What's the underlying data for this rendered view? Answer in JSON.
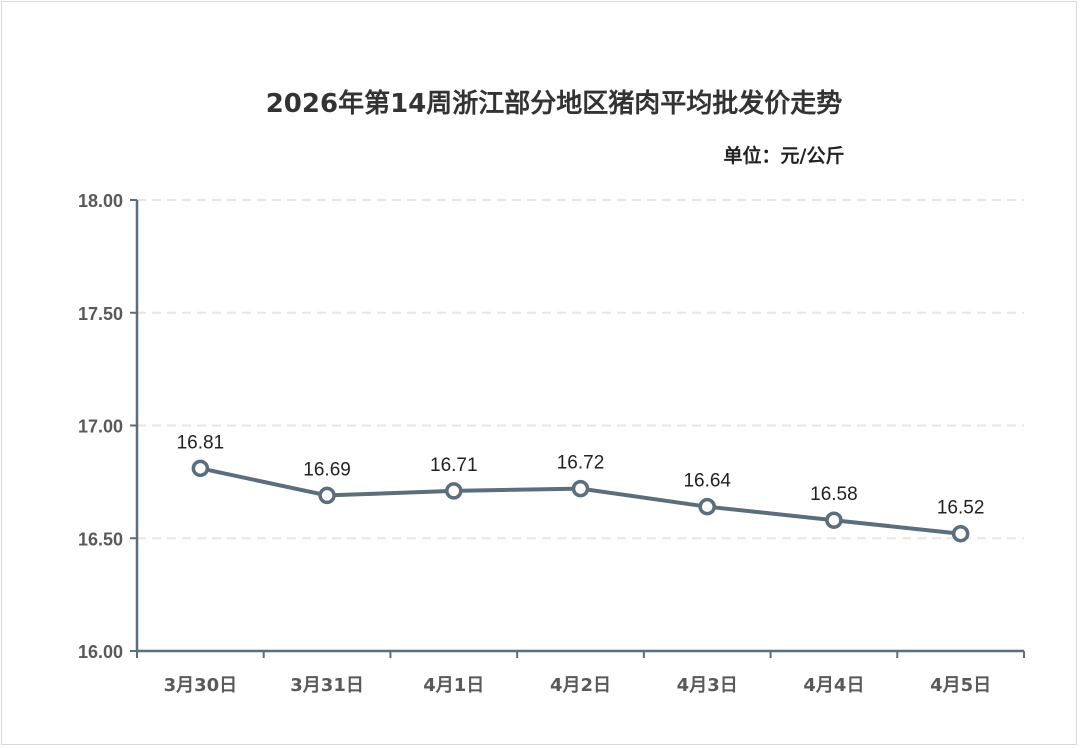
{
  "title": "2026年第14周浙江部分地区猪肉平均批发价走势",
  "unit_label": "单位：元/公斤",
  "colors": {
    "line": "#5b6e7b",
    "marker_fill": "#ffffff",
    "axis": "#5b6e7b",
    "grid": "#e6e6e6",
    "text": "#595959"
  },
  "chart_data": {
    "type": "line",
    "title": "2026年第14周浙江部分地区猪肉平均批发价走势",
    "unit": "单位：元/公斤",
    "categories": [
      "3月30日",
      "3月31日",
      "4月1日",
      "4月2日",
      "4月3日",
      "4月4日",
      "4月5日"
    ],
    "values": [
      16.81,
      16.69,
      16.71,
      16.72,
      16.64,
      16.58,
      16.52
    ],
    "data_labels": [
      "16.81",
      "16.69",
      "16.71",
      "16.72",
      "16.64",
      "16.58",
      "16.52"
    ],
    "yticks": [
      "16.00",
      "16.50",
      "17.00",
      "17.50",
      "18.00"
    ],
    "ylim": [
      16.0,
      18.0
    ],
    "ystep": 0.5,
    "grid": "dashed-horizontal",
    "legend": "none",
    "marker": "hollow-circle"
  }
}
